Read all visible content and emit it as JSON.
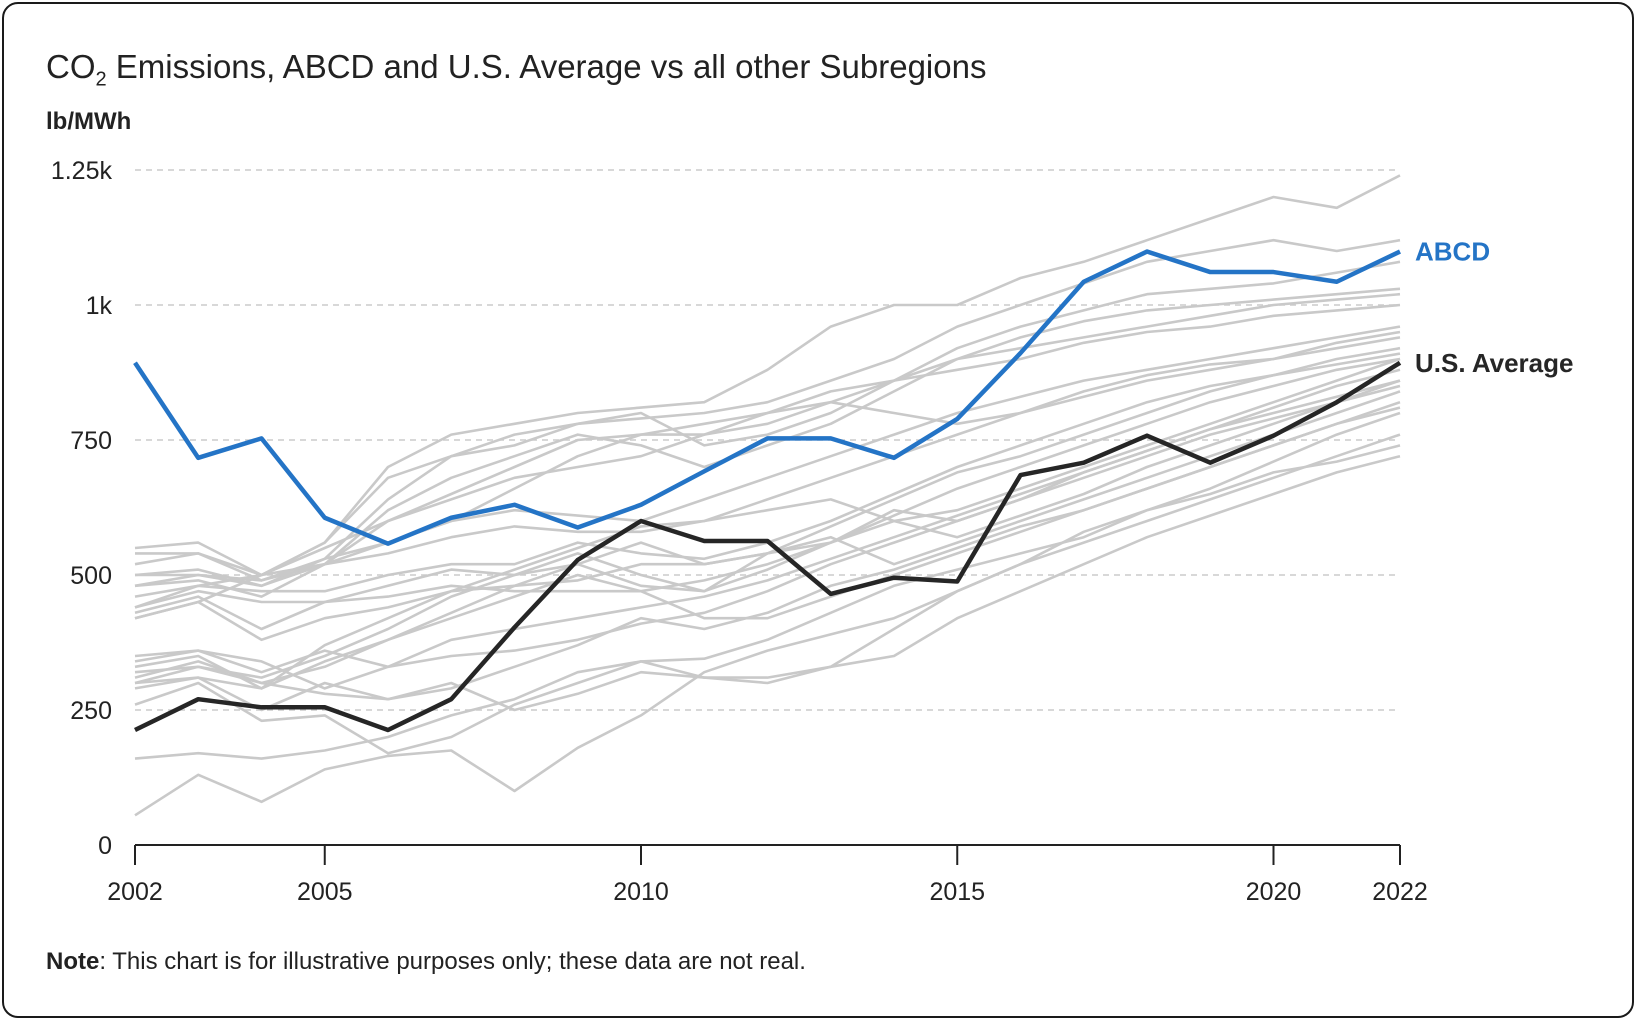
{
  "title": {
    "prefix": "CO",
    "subscript": "2",
    "rest": " Emissions, ABCD and U.S. Average vs all other Subregions"
  },
  "note": {
    "label": "Note",
    "text": ": This chart is for illustrative purposes only; these data are not real."
  },
  "colors": {
    "highlight": "#2474c6",
    "average": "#262626",
    "others": "#c9c9c9",
    "grid": "#cccccc",
    "axis": "#222222"
  },
  "chart_data": {
    "type": "line",
    "title": "CO2 Emissions, ABCD and U.S. Average vs all other Subregions",
    "ylabel": "lb/MWh",
    "xlabel": "",
    "xlim": [
      2002,
      2022
    ],
    "ylim": [
      0,
      1250
    ],
    "y_ticks": [
      0,
      250,
      500,
      750,
      1000,
      1250
    ],
    "y_tick_labels": [
      "0",
      "250",
      "500",
      "750",
      "1k",
      "1.25k"
    ],
    "x_ticks": [
      2002,
      2005,
      2010,
      2015,
      2020,
      2022
    ],
    "x_tick_labels": [
      "2002",
      "2005",
      "2010",
      "2015",
      "2020",
      "2022"
    ],
    "grid": true,
    "x": [
      2002,
      2003,
      2004,
      2005,
      2006,
      2007,
      2008,
      2009,
      2010,
      2011,
      2012,
      2013,
      2014,
      2015,
      2016,
      2017,
      2018,
      2019,
      2020,
      2021,
      2022
    ],
    "highlight_series": [
      {
        "name": "ABCD",
        "values": [
          893,
          717,
          753,
          606,
          558,
          606,
          630,
          588,
          630,
          692,
          753,
          753,
          717,
          789,
          911,
          1043,
          1099,
          1061,
          1061,
          1043,
          1099
        ]
      },
      {
        "name": "U.S. Average",
        "values": [
          213,
          270,
          255,
          255,
          213,
          270,
          403,
          528,
          600,
          563,
          563,
          465,
          495,
          488,
          685,
          708,
          758,
          708,
          758,
          820,
          893
        ]
      }
    ],
    "other_series": [
      [
        55,
        130,
        80,
        140,
        165,
        175,
        100,
        180,
        240,
        320,
        360,
        390,
        420,
        470,
        520,
        560,
        600,
        640,
        680,
        720,
        760
      ],
      [
        160,
        170,
        160,
        175,
        200,
        240,
        270,
        320,
        340,
        345,
        380,
        430,
        480,
        510,
        540,
        570,
        620,
        650,
        690,
        710,
        740
      ],
      [
        260,
        300,
        230,
        240,
        170,
        200,
        260,
        300,
        340,
        310,
        310,
        330,
        350,
        420,
        470,
        520,
        570,
        610,
        650,
        690,
        720
      ],
      [
        300,
        310,
        250,
        300,
        270,
        300,
        250,
        280,
        320,
        310,
        300,
        330,
        400,
        470,
        520,
        580,
        620,
        660,
        710,
        760,
        800
      ],
      [
        320,
        330,
        300,
        280,
        270,
        290,
        330,
        370,
        420,
        400,
        430,
        480,
        510,
        550,
        590,
        620,
        660,
        700,
        740,
        780,
        810
      ],
      [
        340,
        360,
        340,
        290,
        330,
        350,
        360,
        380,
        410,
        430,
        470,
        520,
        560,
        600,
        640,
        680,
        720,
        760,
        790,
        820,
        850
      ],
      [
        350,
        360,
        320,
        360,
        330,
        380,
        400,
        420,
        440,
        460,
        490,
        530,
        570,
        610,
        650,
        690,
        730,
        770,
        800,
        830,
        860
      ],
      [
        330,
        350,
        290,
        340,
        380,
        420,
        460,
        500,
        470,
        420,
        420,
        460,
        500,
        540,
        580,
        620,
        660,
        700,
        740,
        780,
        820
      ],
      [
        300,
        330,
        310,
        350,
        400,
        460,
        500,
        520,
        560,
        520,
        540,
        570,
        520,
        560,
        600,
        640,
        680,
        720,
        760,
        800,
        840
      ],
      [
        290,
        310,
        290,
        370,
        420,
        470,
        510,
        550,
        590,
        600,
        620,
        640,
        600,
        570,
        610,
        650,
        700,
        740,
        780,
        820,
        860
      ],
      [
        310,
        340,
        300,
        330,
        380,
        430,
        480,
        520,
        480,
        470,
        510,
        560,
        620,
        600,
        640,
        690,
        730,
        770,
        810,
        850,
        880
      ],
      [
        420,
        450,
        380,
        420,
        440,
        470,
        480,
        490,
        520,
        520,
        540,
        560,
        600,
        620,
        660,
        700,
        740,
        780,
        820,
        860,
        900
      ],
      [
        430,
        460,
        400,
        450,
        460,
        480,
        470,
        470,
        470,
        490,
        520,
        560,
        610,
        660,
        700,
        740,
        780,
        820,
        850,
        880,
        900
      ],
      [
        440,
        470,
        450,
        450,
        480,
        510,
        500,
        540,
        500,
        470,
        540,
        590,
        640,
        690,
        720,
        760,
        800,
        840,
        870,
        900,
        920
      ],
      [
        460,
        480,
        470,
        470,
        500,
        520,
        520,
        560,
        540,
        530,
        560,
        600,
        650,
        700,
        740,
        780,
        820,
        850,
        870,
        890,
        910
      ],
      [
        480,
        490,
        460,
        520,
        540,
        570,
        590,
        580,
        580,
        600,
        640,
        680,
        720,
        760,
        800,
        840,
        870,
        890,
        900,
        920,
        940
      ],
      [
        500,
        500,
        480,
        530,
        560,
        600,
        620,
        610,
        600,
        640,
        680,
        720,
        760,
        800,
        830,
        860,
        880,
        900,
        920,
        940,
        960
      ],
      [
        550,
        560,
        500,
        550,
        600,
        640,
        680,
        700,
        720,
        760,
        800,
        820,
        800,
        780,
        800,
        830,
        860,
        880,
        900,
        930,
        950
      ],
      [
        540,
        540,
        500,
        520,
        560,
        600,
        660,
        720,
        760,
        780,
        800,
        840,
        860,
        880,
        900,
        930,
        950,
        960,
        980,
        990,
        1000
      ],
      [
        520,
        540,
        490,
        520,
        600,
        650,
        700,
        750,
        760,
        760,
        780,
        820,
        860,
        900,
        920,
        940,
        960,
        980,
        1000,
        1010,
        1020
      ],
      [
        500,
        510,
        480,
        520,
        620,
        680,
        720,
        760,
        740,
        700,
        740,
        780,
        840,
        900,
        940,
        970,
        990,
        1000,
        1010,
        1020,
        1030
      ],
      [
        480,
        500,
        490,
        530,
        640,
        720,
        760,
        780,
        800,
        740,
        760,
        800,
        860,
        920,
        960,
        990,
        1020,
        1030,
        1040,
        1060,
        1080
      ],
      [
        440,
        480,
        500,
        560,
        680,
        720,
        740,
        780,
        790,
        800,
        820,
        860,
        900,
        960,
        1000,
        1040,
        1080,
        1100,
        1120,
        1100,
        1120
      ],
      [
        420,
        450,
        500,
        560,
        700,
        760,
        780,
        800,
        810,
        820,
        880,
        960,
        1000,
        1000,
        1050,
        1080,
        1120,
        1160,
        1200,
        1180,
        1240
      ]
    ]
  }
}
